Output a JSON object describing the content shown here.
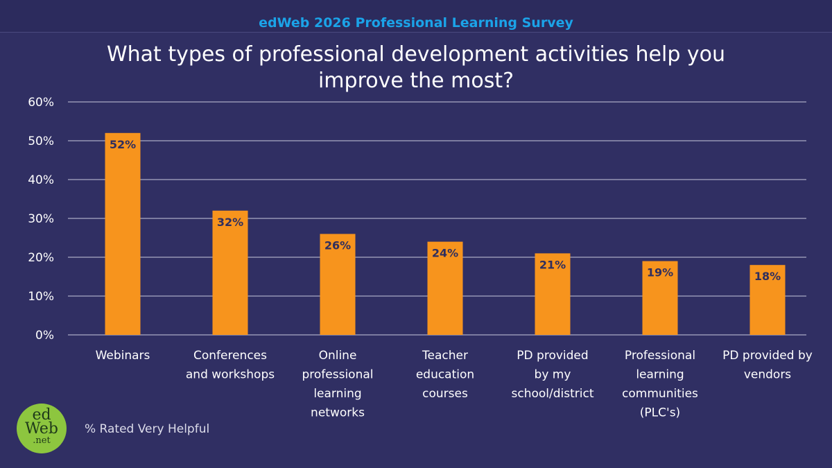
{
  "header": {
    "survey_title": "edWeb 2026 Professional Learning Survey"
  },
  "chart_data": {
    "type": "bar",
    "title": "What types of professional development activities help you improve the most?",
    "title_lines": [
      "What types of professional development activities help you",
      "improve the most?"
    ],
    "categories": [
      [
        "Webinars"
      ],
      [
        "Conferences",
        "and workshops"
      ],
      [
        "Online",
        "professional",
        "learning",
        "networks"
      ],
      [
        "Teacher",
        "education",
        "courses"
      ],
      [
        "PD provided",
        "by my",
        "school/district"
      ],
      [
        "Professional",
        "learning",
        "communities",
        "(PLC's)"
      ],
      [
        "PD provided by",
        "vendors"
      ]
    ],
    "values": [
      52,
      32,
      26,
      24,
      21,
      19,
      18
    ],
    "value_labels": [
      "52%",
      "32%",
      "26%",
      "24%",
      "21%",
      "19%",
      "18%"
    ],
    "y_ticks": [
      "0%",
      "10%",
      "20%",
      "30%",
      "40%",
      "50%",
      "60%"
    ],
    "ylim": [
      0,
      60
    ],
    "grid": true,
    "colors": {
      "bar": "#f7941d",
      "gridline": "#c9c9dc",
      "background": "#302f63"
    }
  },
  "footnote": "% Rated Very Helpful",
  "logo": {
    "line1": "ed",
    "line2": "Web",
    "line3": ".net"
  }
}
